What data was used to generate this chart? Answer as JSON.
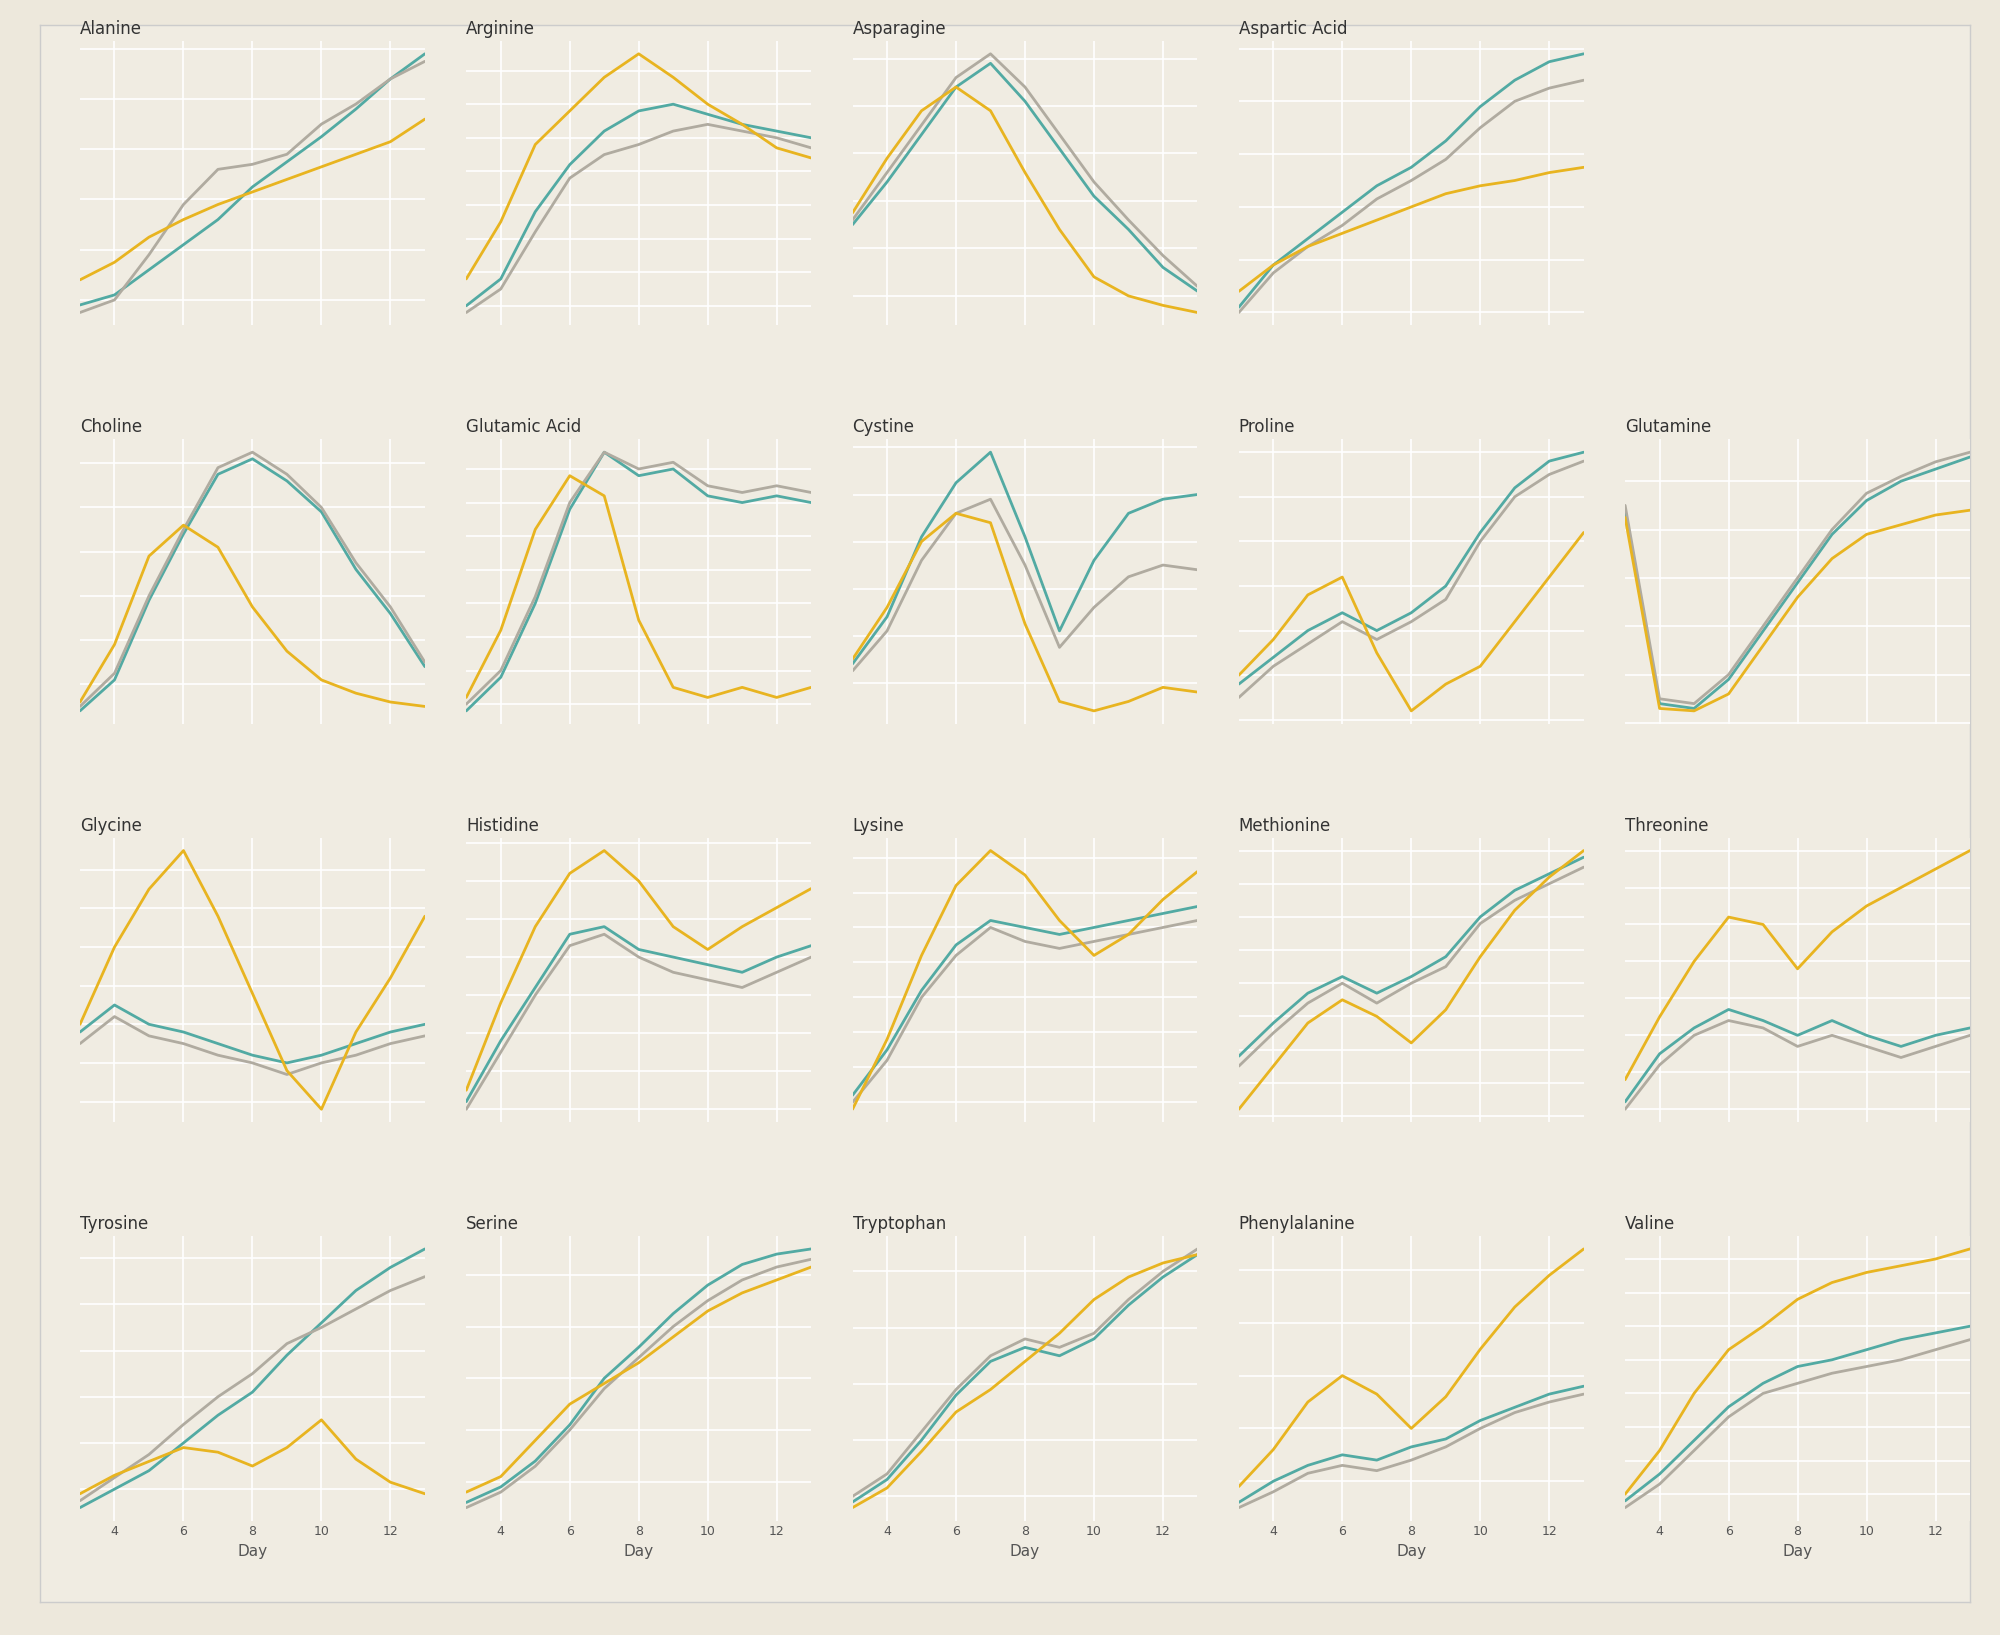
{
  "background_color": "#ede8dc",
  "panel_color": "#f0ece2",
  "subplot_bg": "#f0ece2",
  "grid_color": "#ffffff",
  "line_colors": {
    "teal": "#52aaa3",
    "gray": "#b0aba0",
    "yellow": "#e8b420"
  },
  "x_ticks": [
    4,
    6,
    8,
    10,
    12
  ],
  "xlabel": "Day",
  "title_fontsize": 12,
  "tick_fontsize": 9,
  "label_fontsize": 11,
  "layout": [
    [
      "Alanine",
      "Arginine",
      "Asparagine",
      "Aspartic Acid",
      null
    ],
    [
      "Choline",
      "Glutamic Acid",
      "Cystine",
      "Proline",
      "Glutamine"
    ],
    [
      "Glycine",
      "Histidine",
      "Lysine",
      "Methionine",
      "Threonine"
    ],
    [
      "Tyrosine",
      "Serine",
      "Tryptophan",
      "Phenylalanine",
      "Valine"
    ]
  ],
  "series": {
    "Alanine": {
      "x": [
        3,
        4,
        5,
        6,
        7,
        8,
        9,
        10,
        11,
        12,
        13
      ],
      "teal": [
        18,
        22,
        32,
        42,
        52,
        65,
        75,
        85,
        96,
        108,
        118
      ],
      "gray": [
        15,
        20,
        38,
        58,
        72,
        74,
        78,
        90,
        98,
        108,
        115
      ],
      "yellow": [
        28,
        35,
        45,
        52,
        58,
        63,
        68,
        73,
        78,
        83,
        92
      ]
    },
    "Arginine": {
      "x": [
        3,
        4,
        5,
        6,
        7,
        8,
        9,
        10,
        11,
        12,
        13
      ],
      "teal": [
        30,
        38,
        58,
        72,
        82,
        88,
        90,
        87,
        84,
        82,
        80
      ],
      "gray": [
        28,
        35,
        52,
        68,
        75,
        78,
        82,
        84,
        82,
        80,
        77
      ],
      "yellow": [
        38,
        55,
        78,
        88,
        98,
        105,
        98,
        90,
        84,
        77,
        74
      ]
    },
    "Asparagine": {
      "x": [
        3,
        4,
        5,
        6,
        7,
        8,
        9,
        10,
        11,
        12,
        13
      ],
      "teal": [
        50,
        68,
        88,
        108,
        118,
        102,
        82,
        62,
        48,
        32,
        22
      ],
      "gray": [
        52,
        72,
        92,
        112,
        122,
        108,
        88,
        68,
        52,
        37,
        24
      ],
      "yellow": [
        55,
        78,
        98,
        108,
        98,
        72,
        48,
        28,
        20,
        16,
        13
      ]
    },
    "Aspartic Acid": {
      "x": [
        3,
        4,
        5,
        6,
        7,
        8,
        9,
        10,
        11,
        12,
        13
      ],
      "teal": [
        42,
        58,
        68,
        78,
        88,
        95,
        105,
        118,
        128,
        135,
        138
      ],
      "gray": [
        40,
        55,
        65,
        73,
        83,
        90,
        98,
        110,
        120,
        125,
        128
      ],
      "yellow": [
        48,
        58,
        65,
        70,
        75,
        80,
        85,
        88,
        90,
        93,
        95
      ]
    },
    "Choline": {
      "x": [
        3,
        4,
        5,
        6,
        7,
        8,
        9,
        10,
        11,
        12,
        13
      ],
      "teal": [
        8,
        22,
        58,
        88,
        115,
        122,
        112,
        98,
        72,
        52,
        28
      ],
      "gray": [
        10,
        25,
        60,
        90,
        118,
        125,
        115,
        100,
        75,
        55,
        30
      ],
      "yellow": [
        12,
        38,
        78,
        92,
        82,
        55,
        35,
        22,
        16,
        12,
        10
      ]
    },
    "Glutamic Acid": {
      "x": [
        3,
        4,
        5,
        6,
        7,
        8,
        9,
        10,
        11,
        12,
        13
      ],
      "teal": [
        18,
        28,
        50,
        78,
        95,
        88,
        90,
        82,
        80,
        82,
        80
      ],
      "gray": [
        20,
        30,
        52,
        80,
        95,
        90,
        92,
        85,
        83,
        85,
        83
      ],
      "yellow": [
        22,
        42,
        72,
        88,
        82,
        45,
        25,
        22,
        25,
        22,
        25
      ]
    },
    "Cystine": {
      "x": [
        3,
        4,
        5,
        6,
        7,
        8,
        9,
        10,
        11,
        12,
        13
      ],
      "teal": [
        28,
        48,
        82,
        105,
        118,
        82,
        42,
        72,
        92,
        98,
        100
      ],
      "gray": [
        25,
        42,
        72,
        92,
        98,
        70,
        35,
        52,
        65,
        70,
        68
      ],
      "yellow": [
        30,
        52,
        80,
        92,
        88,
        45,
        12,
        8,
        12,
        18,
        16
      ]
    },
    "Proline": {
      "x": [
        3,
        4,
        5,
        6,
        7,
        8,
        9,
        10,
        11,
        12,
        13
      ],
      "teal": [
        58,
        64,
        70,
        74,
        70,
        74,
        80,
        92,
        102,
        108,
        110
      ],
      "gray": [
        55,
        62,
        67,
        72,
        68,
        72,
        77,
        90,
        100,
        105,
        108
      ],
      "yellow": [
        60,
        68,
        78,
        82,
        65,
        52,
        58,
        62,
        72,
        82,
        92
      ]
    },
    "Glutamine": {
      "x": [
        3,
        4,
        5,
        6,
        7,
        8,
        9,
        10,
        11,
        12,
        13
      ],
      "teal": [
        88,
        8,
        6,
        18,
        38,
        58,
        78,
        92,
        100,
        105,
        110
      ],
      "gray": [
        90,
        10,
        8,
        20,
        40,
        60,
        80,
        95,
        102,
        108,
        112
      ],
      "yellow": [
        85,
        6,
        5,
        12,
        32,
        52,
        68,
        78,
        82,
        86,
        88
      ]
    },
    "Glycine": {
      "x": [
        3,
        4,
        5,
        6,
        7,
        8,
        9,
        10,
        11,
        12,
        13
      ],
      "teal": [
        58,
        65,
        60,
        58,
        55,
        52,
        50,
        52,
        55,
        58,
        60
      ],
      "gray": [
        55,
        62,
        57,
        55,
        52,
        50,
        47,
        50,
        52,
        55,
        57
      ],
      "yellow": [
        60,
        80,
        95,
        105,
        88,
        68,
        48,
        38,
        58,
        72,
        88
      ]
    },
    "Histidine": {
      "x": [
        3,
        4,
        5,
        6,
        7,
        8,
        9,
        10,
        11,
        12,
        13
      ],
      "teal": [
        32,
        48,
        62,
        76,
        78,
        72,
        70,
        68,
        66,
        70,
        73
      ],
      "gray": [
        30,
        45,
        60,
        73,
        76,
        70,
        66,
        64,
        62,
        66,
        70
      ],
      "yellow": [
        35,
        58,
        78,
        92,
        98,
        90,
        78,
        72,
        78,
        83,
        88
      ]
    },
    "Lysine": {
      "x": [
        3,
        4,
        5,
        6,
        7,
        8,
        9,
        10,
        11,
        12,
        13
      ],
      "teal": [
        22,
        35,
        52,
        65,
        72,
        70,
        68,
        70,
        72,
        74,
        76
      ],
      "gray": [
        20,
        32,
        50,
        62,
        70,
        66,
        64,
        66,
        68,
        70,
        72
      ],
      "yellow": [
        18,
        38,
        62,
        82,
        92,
        85,
        72,
        62,
        68,
        78,
        86
      ]
    },
    "Methionine": {
      "x": [
        3,
        4,
        5,
        6,
        7,
        8,
        9,
        10,
        11,
        12,
        13
      ],
      "teal": [
        48,
        58,
        67,
        72,
        67,
        72,
        78,
        90,
        98,
        103,
        108
      ],
      "gray": [
        45,
        55,
        64,
        70,
        64,
        70,
        75,
        88,
        95,
        100,
        105
      ],
      "yellow": [
        32,
        45,
        58,
        65,
        60,
        52,
        62,
        78,
        92,
        102,
        110
      ]
    },
    "Threonine": {
      "x": [
        3,
        4,
        5,
        6,
        7,
        8,
        9,
        10,
        11,
        12,
        13
      ],
      "teal": [
        42,
        55,
        62,
        67,
        64,
        60,
        64,
        60,
        57,
        60,
        62
      ],
      "gray": [
        40,
        52,
        60,
        64,
        62,
        57,
        60,
        57,
        54,
        57,
        60
      ],
      "yellow": [
        48,
        65,
        80,
        92,
        90,
        78,
        88,
        95,
        100,
        105,
        110
      ]
    },
    "Tyrosine": {
      "x": [
        3,
        4,
        5,
        6,
        7,
        8,
        9,
        10,
        11,
        12,
        13
      ],
      "teal": [
        12,
        20,
        28,
        40,
        52,
        62,
        78,
        92,
        106,
        116,
        124
      ],
      "gray": [
        15,
        25,
        35,
        48,
        60,
        70,
        83,
        90,
        98,
        106,
        112
      ],
      "yellow": [
        18,
        26,
        32,
        38,
        36,
        30,
        38,
        50,
        33,
        23,
        18
      ]
    },
    "Serine": {
      "x": [
        3,
        4,
        5,
        6,
        7,
        8,
        9,
        10,
        11,
        12,
        13
      ],
      "teal": [
        12,
        18,
        28,
        42,
        60,
        72,
        85,
        96,
        104,
        108,
        110
      ],
      "gray": [
        10,
        16,
        26,
        40,
        56,
        68,
        80,
        90,
        98,
        103,
        106
      ],
      "yellow": [
        16,
        22,
        36,
        50,
        58,
        66,
        76,
        86,
        93,
        98,
        103
      ]
    },
    "Tryptophan": {
      "x": [
        3,
        4,
        5,
        6,
        7,
        8,
        9,
        10,
        11,
        12,
        13
      ],
      "teal": [
        18,
        26,
        40,
        56,
        68,
        73,
        70,
        76,
        88,
        98,
        106
      ],
      "gray": [
        20,
        28,
        43,
        58,
        70,
        76,
        73,
        78,
        90,
        100,
        108
      ],
      "yellow": [
        16,
        23,
        36,
        50,
        58,
        68,
        78,
        90,
        98,
        103,
        106
      ]
    },
    "Phenylalanine": {
      "x": [
        3,
        4,
        5,
        6,
        7,
        8,
        9,
        10,
        11,
        12,
        13
      ],
      "teal": [
        12,
        20,
        26,
        30,
        28,
        33,
        36,
        43,
        48,
        53,
        56
      ],
      "gray": [
        10,
        16,
        23,
        26,
        24,
        28,
        33,
        40,
        46,
        50,
        53
      ],
      "yellow": [
        18,
        32,
        50,
        60,
        53,
        40,
        52,
        70,
        86,
        98,
        108
      ]
    },
    "Valine": {
      "x": [
        3,
        4,
        5,
        6,
        7,
        8,
        9,
        10,
        11,
        12,
        13
      ],
      "teal": [
        18,
        26,
        36,
        46,
        53,
        58,
        60,
        63,
        66,
        68,
        70
      ],
      "gray": [
        16,
        23,
        33,
        43,
        50,
        53,
        56,
        58,
        60,
        63,
        66
      ],
      "yellow": [
        20,
        33,
        50,
        63,
        70,
        78,
        83,
        86,
        88,
        90,
        93
      ]
    }
  }
}
